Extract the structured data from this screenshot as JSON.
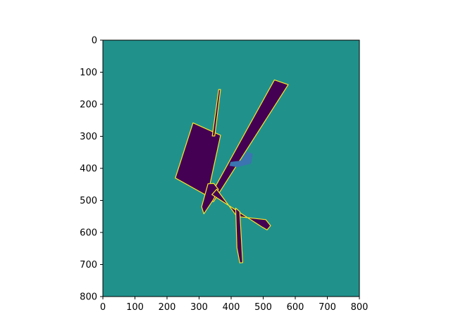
{
  "chart_data": {
    "type": "heatmap",
    "title": "",
    "xlabel": "",
    "ylabel": "",
    "xlim": [
      0,
      800
    ],
    "ylim": [
      800,
      0
    ],
    "x_ticks": [
      0,
      100,
      200,
      300,
      400,
      500,
      600,
      700,
      800
    ],
    "y_ticks": [
      0,
      100,
      200,
      300,
      400,
      500,
      600,
      700,
      800
    ],
    "x_tick_labels": [
      "0",
      "100",
      "200",
      "300",
      "400",
      "500",
      "600",
      "700",
      "800"
    ],
    "y_tick_labels": [
      "0",
      "100",
      "200",
      "300",
      "400",
      "500",
      "600",
      "700",
      "800"
    ],
    "grid": false,
    "legend": "none",
    "colormap": "viridis",
    "colors": {
      "background": "#21918c",
      "obstacle": "#440154",
      "boundary": "#fde725",
      "agent": "#3b74b0"
    },
    "regions": [
      {
        "class": "obstacle",
        "shape": "square-room",
        "polygon": [
          [
            281,
            258
          ],
          [
            367,
            297
          ],
          [
            326,
            486
          ],
          [
            226,
            430
          ]
        ]
      },
      {
        "class": "obstacle",
        "shape": "diagonal-corridor",
        "polygon": [
          [
            578,
            139
          ],
          [
            535,
            124
          ],
          [
            327,
            500
          ],
          [
            345,
            504
          ]
        ]
      },
      {
        "class": "obstacle",
        "shape": "thin-spike-upper",
        "polygon": [
          [
            361,
            154
          ],
          [
            367,
            154
          ],
          [
            349,
            299
          ],
          [
            341,
            299
          ]
        ]
      },
      {
        "class": "obstacle",
        "shape": "central-block",
        "polygon": [
          [
            328,
            448
          ],
          [
            346,
            447
          ],
          [
            360,
            465
          ],
          [
            345,
            497
          ],
          [
            315,
            542
          ],
          [
            308,
            520
          ]
        ]
      },
      {
        "class": "obstacle",
        "shape": "lower-right-wedge",
        "polygon": [
          [
            340,
            482
          ],
          [
            355,
            465
          ],
          [
            418,
            550
          ],
          [
            508,
            560
          ],
          [
            523,
            579
          ],
          [
            512,
            592
          ],
          [
            498,
            584
          ]
        ]
      },
      {
        "class": "obstacle",
        "shape": "lower-spike",
        "polygon": [
          [
            414,
            524
          ],
          [
            427,
            535
          ],
          [
            436,
            694
          ],
          [
            427,
            695
          ],
          [
            418,
            648
          ]
        ]
      },
      {
        "class": "agent",
        "shape": "crescent",
        "polygon": [
          [
            448,
            348
          ],
          [
            468,
            355
          ],
          [
            462,
            385
          ],
          [
            420,
            396
          ],
          [
            395,
            392
          ],
          [
            398,
            380
          ],
          [
            430,
            376
          ],
          [
            440,
            362
          ]
        ]
      }
    ]
  }
}
